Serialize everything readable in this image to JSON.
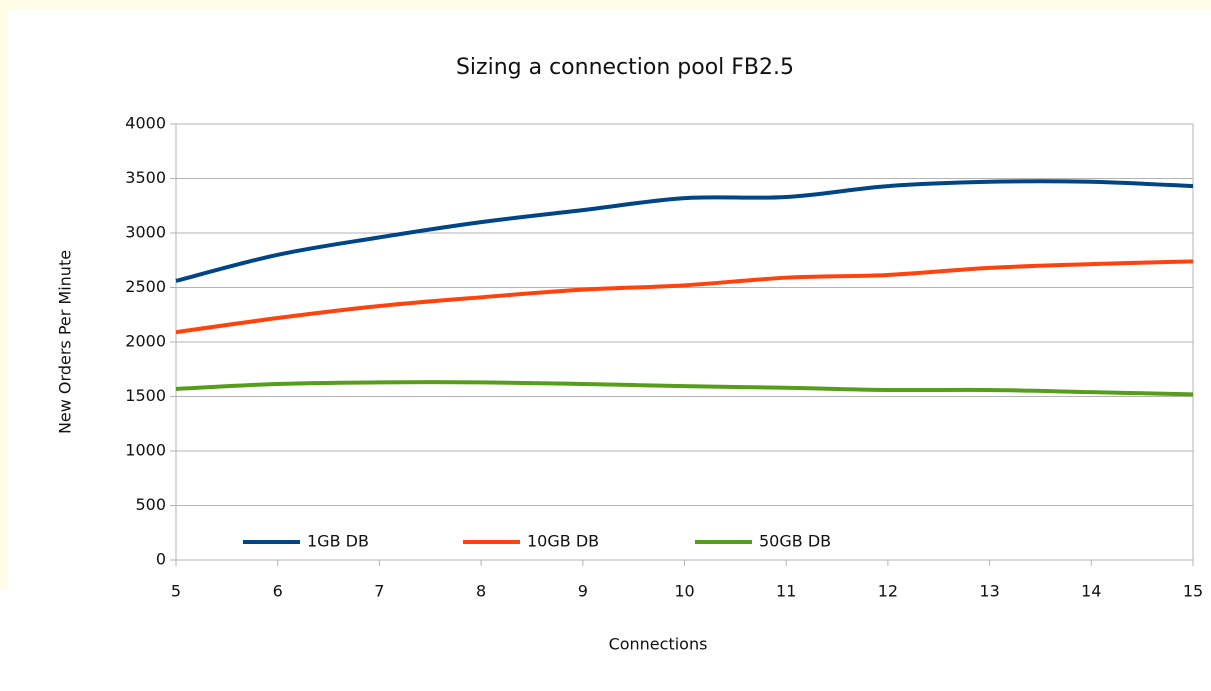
{
  "chart_data": {
    "type": "line",
    "title": "Sizing a connection pool FB2.5",
    "x_label": "Connections",
    "y_label": "New Orders Per Minute",
    "x": [
      5,
      6,
      7,
      8,
      9,
      10,
      11,
      12,
      13,
      14,
      15
    ],
    "series": [
      {
        "name": "1GB DB",
        "color": "#004586",
        "values": [
          2560,
          2800,
          2960,
          3100,
          3210,
          3320,
          3330,
          3430,
          3470,
          3470,
          3430
        ]
      },
      {
        "name": "10GB DB",
        "color": "#ff420e",
        "values": [
          2090,
          2220,
          2330,
          2410,
          2480,
          2520,
          2590,
          2615,
          2680,
          2715,
          2740
        ]
      },
      {
        "name": "50GB DB",
        "color": "#579d1c",
        "values": [
          1570,
          1615,
          1630,
          1630,
          1615,
          1595,
          1580,
          1560,
          1560,
          1540,
          1520
        ]
      }
    ],
    "xlim": [
      5,
      15
    ],
    "xticks": [
      5,
      6,
      7,
      8,
      9,
      10,
      11,
      12,
      13,
      14,
      15
    ],
    "ylim": [
      0,
      4000
    ],
    "yticks": [
      0,
      500,
      1000,
      1500,
      2000,
      2500,
      3000,
      3500,
      4000
    ],
    "grid": true,
    "smooth": true,
    "legend": "bottom"
  }
}
